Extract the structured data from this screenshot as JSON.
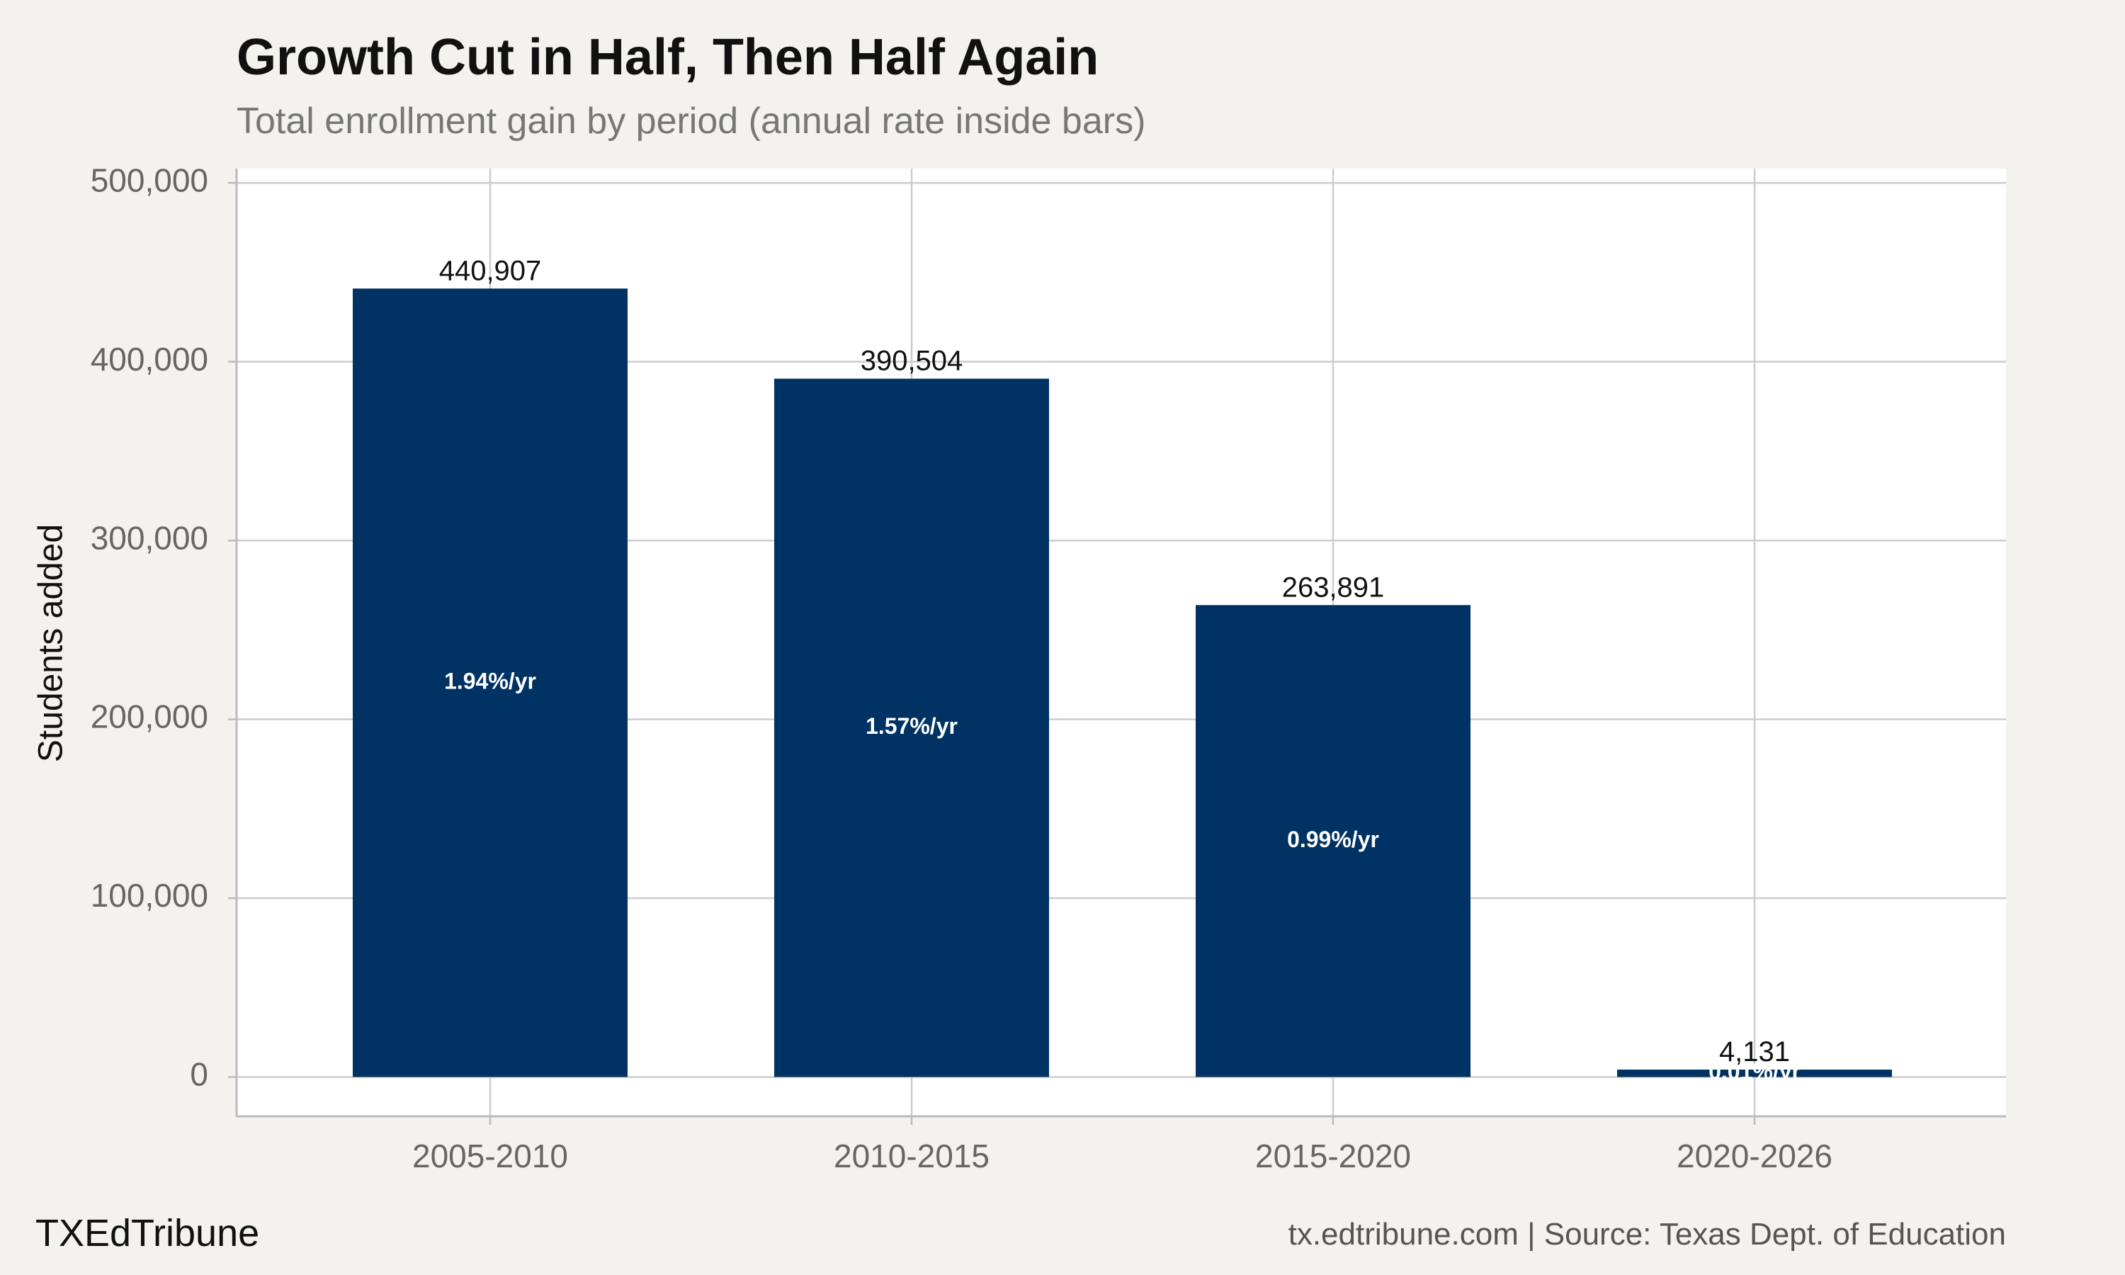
{
  "chart_data": {
    "type": "bar",
    "title": "Growth Cut in Half, Then Half Again",
    "subtitle": "Total enrollment gain by period (annual rate inside bars)",
    "xlabel": "",
    "ylabel": "Students added",
    "categories": [
      "2005-2010",
      "2010-2015",
      "2015-2020",
      "2020-2026"
    ],
    "values": [
      440907,
      390504,
      263891,
      4131
    ],
    "value_labels": [
      "440,907",
      "390,504",
      "263,891",
      "4,131"
    ],
    "rate_labels": [
      "1.94%/yr",
      "1.57%/yr",
      "0.99%/yr",
      "0.01%/yr"
    ],
    "ylim": [
      -22000,
      508000
    ],
    "yticks": [
      0,
      100000,
      200000,
      300000,
      400000,
      500000
    ],
    "ytick_labels": [
      "0",
      "100,000",
      "200,000",
      "300,000",
      "400,000",
      "500,000"
    ],
    "grid": true,
    "legend": "none",
    "bar_color": "#003263",
    "panel_color": "#ffffff",
    "background_color": "#f4f2ee",
    "grid_color": "#cccccc"
  },
  "footer": {
    "brand": "TXEdTribune",
    "caption": "tx.edtribune.com | Source: Texas Dept. of Education"
  }
}
